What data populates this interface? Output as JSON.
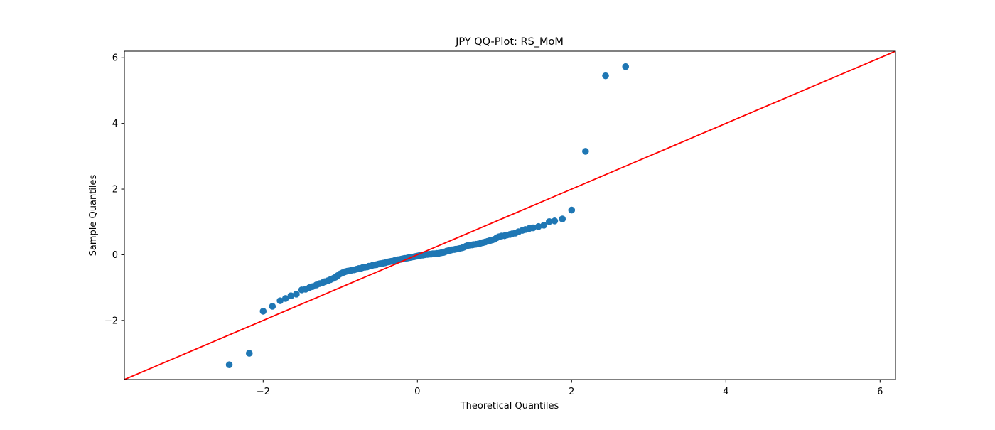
{
  "chart_data": {
    "type": "scatter",
    "title": "JPY QQ-Plot: RS_MoM",
    "xlabel": "Theoretical Quantiles",
    "ylabel": "Sample Quantiles",
    "xlim": [
      -3.8,
      6.2
    ],
    "ylim": [
      -3.8,
      6.2
    ],
    "xticks": [
      -2,
      0,
      2,
      4,
      6
    ],
    "yticks": [
      -2,
      0,
      2,
      4,
      6
    ],
    "grid": false,
    "point_color": "#1f77b4",
    "reference_line": {
      "x": [
        -3.8,
        6.2
      ],
      "y": [
        -3.8,
        6.2
      ],
      "color": "#ff0000"
    },
    "points": [
      [
        -2.44,
        -3.35
      ],
      [
        -2.18,
        -3.0
      ],
      [
        -2.0,
        -1.72
      ],
      [
        -1.88,
        -1.57
      ],
      [
        -1.78,
        -1.4
      ],
      [
        -1.71,
        -1.33
      ],
      [
        -1.64,
        -1.25
      ],
      [
        -1.57,
        -1.2
      ],
      [
        -1.5,
        -1.07
      ],
      [
        -1.45,
        -1.05
      ],
      [
        -1.4,
        -1.0
      ],
      [
        -1.36,
        -0.97
      ],
      [
        -1.31,
        -0.92
      ],
      [
        -1.27,
        -0.88
      ],
      [
        -1.23,
        -0.85
      ],
      [
        -1.2,
        -0.82
      ],
      [
        -1.16,
        -0.79
      ],
      [
        -1.13,
        -0.76
      ],
      [
        -1.09,
        -0.72
      ],
      [
        -1.06,
        -0.68
      ],
      [
        -1.03,
        -0.63
      ],
      [
        -1.0,
        -0.58
      ],
      [
        -0.97,
        -0.55
      ],
      [
        -0.94,
        -0.52
      ],
      [
        -0.91,
        -0.5
      ],
      [
        -0.88,
        -0.49
      ],
      [
        -0.85,
        -0.47
      ],
      [
        -0.82,
        -0.46
      ],
      [
        -0.79,
        -0.44
      ],
      [
        -0.76,
        -0.42
      ],
      [
        -0.73,
        -0.41
      ],
      [
        -0.71,
        -0.39
      ],
      [
        -0.68,
        -0.38
      ],
      [
        -0.65,
        -0.37
      ],
      [
        -0.63,
        -0.35
      ],
      [
        -0.6,
        -0.34
      ],
      [
        -0.58,
        -0.32
      ],
      [
        -0.55,
        -0.31
      ],
      [
        -0.53,
        -0.3
      ],
      [
        -0.5,
        -0.28
      ],
      [
        -0.48,
        -0.27
      ],
      [
        -0.45,
        -0.26
      ],
      [
        -0.43,
        -0.25
      ],
      [
        -0.41,
        -0.24
      ],
      [
        -0.38,
        -0.22
      ],
      [
        -0.36,
        -0.21
      ],
      [
        -0.34,
        -0.2
      ],
      [
        -0.31,
        -0.19
      ],
      [
        -0.29,
        -0.17
      ],
      [
        -0.27,
        -0.16
      ],
      [
        -0.25,
        -0.15
      ],
      [
        -0.22,
        -0.14
      ],
      [
        -0.2,
        -0.13
      ],
      [
        -0.18,
        -0.12
      ],
      [
        -0.16,
        -0.11
      ],
      [
        -0.13,
        -0.1
      ],
      [
        -0.11,
        -0.09
      ],
      [
        -0.09,
        -0.08
      ],
      [
        -0.07,
        -0.07
      ],
      [
        -0.04,
        -0.06
      ],
      [
        -0.02,
        -0.05
      ],
      [
        0.0,
        -0.04
      ],
      [
        0.02,
        -0.03
      ],
      [
        0.04,
        -0.02
      ],
      [
        0.07,
        -0.01
      ],
      [
        0.09,
        0.0
      ],
      [
        0.11,
        0.01
      ],
      [
        0.13,
        0.01
      ],
      [
        0.16,
        0.02
      ],
      [
        0.18,
        0.02
      ],
      [
        0.2,
        0.03
      ],
      [
        0.22,
        0.03
      ],
      [
        0.25,
        0.04
      ],
      [
        0.27,
        0.04
      ],
      [
        0.29,
        0.05
      ],
      [
        0.31,
        0.06
      ],
      [
        0.34,
        0.07
      ],
      [
        0.36,
        0.09
      ],
      [
        0.38,
        0.11
      ],
      [
        0.41,
        0.13
      ],
      [
        0.43,
        0.14
      ],
      [
        0.45,
        0.15
      ],
      [
        0.48,
        0.16
      ],
      [
        0.5,
        0.17
      ],
      [
        0.53,
        0.18
      ],
      [
        0.55,
        0.19
      ],
      [
        0.58,
        0.21
      ],
      [
        0.6,
        0.23
      ],
      [
        0.63,
        0.26
      ],
      [
        0.65,
        0.28
      ],
      [
        0.68,
        0.29
      ],
      [
        0.71,
        0.3
      ],
      [
        0.73,
        0.31
      ],
      [
        0.76,
        0.32
      ],
      [
        0.79,
        0.33
      ],
      [
        0.82,
        0.35
      ],
      [
        0.85,
        0.37
      ],
      [
        0.88,
        0.39
      ],
      [
        0.91,
        0.41
      ],
      [
        0.94,
        0.43
      ],
      [
        0.97,
        0.45
      ],
      [
        1.0,
        0.47
      ],
      [
        1.03,
        0.52
      ],
      [
        1.06,
        0.55
      ],
      [
        1.09,
        0.57
      ],
      [
        1.13,
        0.58
      ],
      [
        1.16,
        0.6
      ],
      [
        1.2,
        0.62
      ],
      [
        1.23,
        0.64
      ],
      [
        1.27,
        0.66
      ],
      [
        1.31,
        0.7
      ],
      [
        1.36,
        0.74
      ],
      [
        1.4,
        0.77
      ],
      [
        1.45,
        0.8
      ],
      [
        1.5,
        0.82
      ],
      [
        1.57,
        0.86
      ],
      [
        1.64,
        0.9
      ],
      [
        1.71,
        1.01
      ],
      [
        1.78,
        1.03
      ],
      [
        1.88,
        1.09
      ],
      [
        2.0,
        1.36
      ],
      [
        2.18,
        3.15
      ],
      [
        2.44,
        5.45
      ],
      [
        2.7,
        5.73
      ]
    ]
  }
}
